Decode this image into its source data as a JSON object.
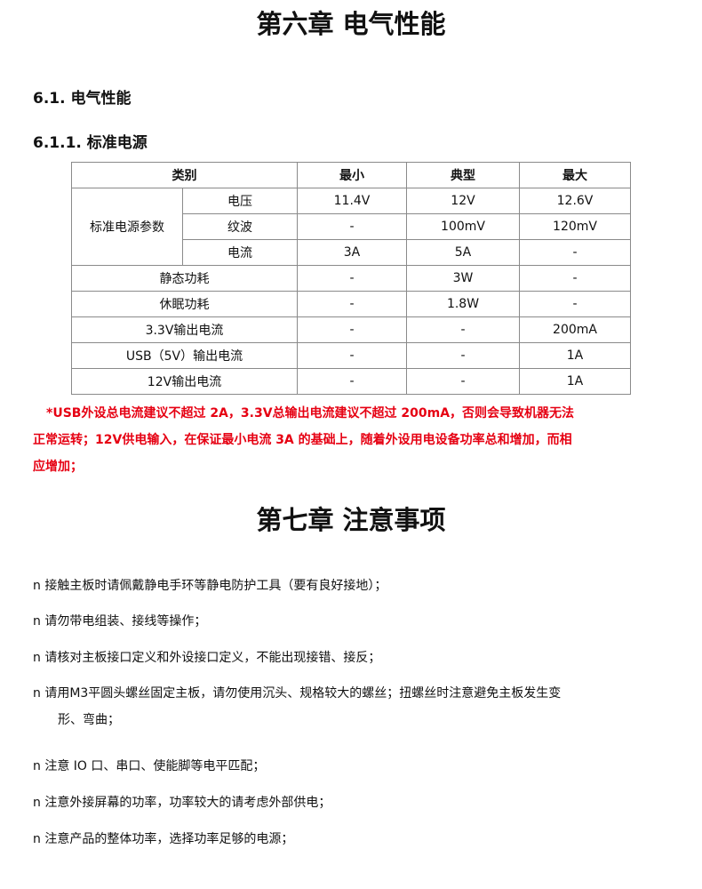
{
  "chapter6": {
    "title": "第六章  电气性能",
    "section": "6.1.  电气性能",
    "subsection": "6.1.1.  标准电源"
  },
  "table": {
    "headers": [
      "类别",
      "最小",
      "典型",
      "最大"
    ],
    "group_label": "标准电源参数",
    "group_rows": [
      {
        "name": "电压",
        "min": "11.4V",
        "typ": "12V",
        "max": "12.6V"
      },
      {
        "name": "纹波",
        "min": "-",
        "typ": "100mV",
        "max": "120mV"
      },
      {
        "name": "电流",
        "min": "3A",
        "typ": "5A",
        "max": "-"
      }
    ],
    "rows": [
      {
        "name": "静态功耗",
        "min": "-",
        "typ": "3W",
        "max": "-"
      },
      {
        "name": "休眠功耗",
        "min": "-",
        "typ": "1.8W",
        "max": "-"
      },
      {
        "name": "3.3V输出电流",
        "min": "-",
        "typ": "-",
        "max": "200mA"
      },
      {
        "name": "USB（5V）输出电流",
        "min": "-",
        "typ": "-",
        "max": "1A"
      },
      {
        "name": "12V输出电流",
        "min": "-",
        "typ": "-",
        "max": "1A"
      }
    ]
  },
  "note": {
    "lines": [
      "*USB外设总电流建议不超过 2A，3.3V总输出电流建议不超过 200mA，否则会导致机器无法",
      "正常运转；12V供电输入，在保证最小电流 3A 的基础上，随着外设用电设备功率总和增加，而相",
      "应增加；"
    ],
    "color": "#e60012"
  },
  "chapter7": {
    "title": "第七章 注意事项",
    "items": [
      "n 接触主板时请佩戴静电手环等静电防护工具（要有良好接地）；",
      "n 请勿带电组装、接线等操作；",
      "n 请核对主板接口定义和外设接口定义，不能出现接错、接反；",
      "n 请用M3平圆头螺丝固定主板，请勿使用沉头、规格较大的螺丝；扭螺丝时注意避免主板发生变",
      "n 注意 IO 口、串口、使能脚等电平匹配；",
      "n 注意外接屏幕的功率，功率较大的请考虑外部供电；",
      "n 注意产品的整体功率，选择功率足够的电源；"
    ],
    "item4_continuation": "形、弯曲；"
  }
}
